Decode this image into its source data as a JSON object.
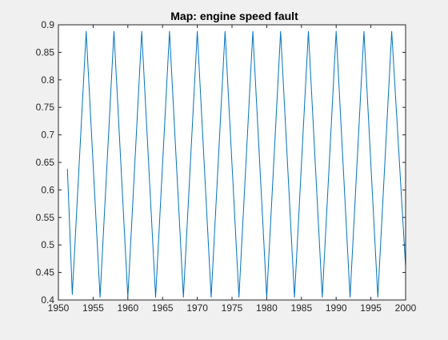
{
  "chart_data": {
    "type": "line",
    "title": "Map: engine speed fault",
    "xlabel": "",
    "ylabel": "",
    "xlim": [
      1950,
      2000
    ],
    "ylim": [
      0.4,
      0.9
    ],
    "xticks": [
      1950,
      1955,
      1960,
      1965,
      1970,
      1975,
      1980,
      1985,
      1990,
      1995,
      2000
    ],
    "xtick_labels": [
      "1950",
      "1955",
      "1960",
      "1965",
      "1970",
      "1975",
      "1980",
      "1985",
      "1990",
      "1995",
      "2000"
    ],
    "yticks": [
      0.4,
      0.45,
      0.5,
      0.55,
      0.6,
      0.65,
      0.7,
      0.75,
      0.8,
      0.85,
      0.9
    ],
    "ytick_labels": [
      "0.4",
      "0.45",
      "0.5",
      "0.55",
      "0.6",
      "0.65",
      "0.7",
      "0.75",
      "0.8",
      "0.85",
      "0.9"
    ],
    "grid": false,
    "legend": "none",
    "series": [
      {
        "color": "#0072bd",
        "x": [
          1951.3,
          1952.0,
          1954.0,
          1956.0,
          1958.0,
          1960.0,
          1962.0,
          1964.0,
          1966.0,
          1968.0,
          1970.0,
          1972.0,
          1974.0,
          1976.0,
          1978.0,
          1980.0,
          1982.0,
          1984.0,
          1986.0,
          1988.0,
          1990.0,
          1992.0,
          1994.0,
          1996.0,
          1998.0,
          2000.0
        ],
        "y": [
          0.638,
          0.41,
          0.888,
          0.405,
          0.888,
          0.405,
          0.888,
          0.405,
          0.888,
          0.405,
          0.888,
          0.405,
          0.888,
          0.405,
          0.888,
          0.405,
          0.888,
          0.405,
          0.888,
          0.405,
          0.888,
          0.405,
          0.888,
          0.405,
          0.888,
          0.46
        ]
      }
    ]
  }
}
